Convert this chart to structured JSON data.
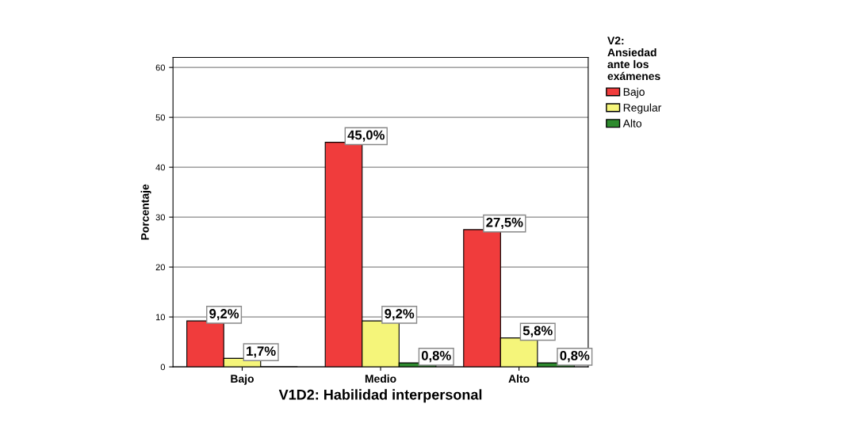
{
  "chart_data": {
    "type": "bar",
    "xlabel": "V1D2: Habilidad interpersonal",
    "ylabel": "Porcentaje",
    "legend_title": "V2:\nAnsiedad\nante los\nexámenes",
    "categories": [
      "Bajo",
      "Medio",
      "Alto"
    ],
    "series": [
      {
        "name": "Bajo",
        "color": "#f03c3c",
        "values": [
          9.2,
          45.0,
          27.5
        ],
        "value_labels": [
          "9,2%",
          "45,0%",
          "27,5%"
        ]
      },
      {
        "name": "Regular",
        "color": "#f5f57a",
        "values": [
          1.7,
          9.2,
          5.8
        ],
        "value_labels": [
          "1,7%",
          "9,2%",
          "5,8%"
        ]
      },
      {
        "name": "Alto",
        "color": "#2e8b2e",
        "values": [
          null,
          0.8,
          0.8
        ],
        "value_labels": [
          null,
          "0,8%",
          "0,8%"
        ]
      }
    ],
    "ylim": [
      0,
      62
    ],
    "yticks": [
      0,
      10,
      20,
      30,
      40,
      50,
      60
    ],
    "grid": "y",
    "legend": "top right"
  }
}
